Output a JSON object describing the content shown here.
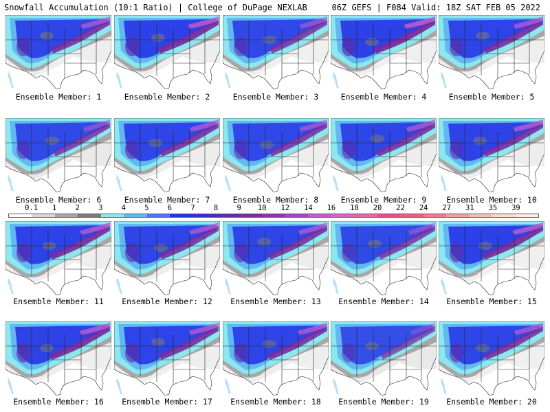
{
  "header": {
    "left": "Snowfall Accumulation (10:1 Ratio) | College of DuPage NEXLAB",
    "right": "06Z GEFS | F084 Valid: 18Z SAT FEB 05 2022"
  },
  "legend": {
    "labels": [
      "0.1",
      "1",
      "2",
      "3",
      "4",
      "5",
      "6",
      "7",
      "8",
      "9",
      "10",
      "12",
      "14",
      "16",
      "18",
      "20",
      "22",
      "24",
      "27",
      "31",
      "35",
      "39"
    ],
    "colors": [
      "#ffffff",
      "#d9d9d9",
      "#a6a6a6",
      "#7a7a7a",
      "#8ce8ee",
      "#63b8f2",
      "#4a78f0",
      "#2233e8",
      "#3a2fc6",
      "#5a2ea8",
      "#7a2b9e",
      "#8f34b0",
      "#a446c2",
      "#c05ccd",
      "#d566c8",
      "#dd6aa8",
      "#e04f8e",
      "#e2627c",
      "#e87f8a",
      "#ef9f9c",
      "#f3bfb3",
      "#f8dccb",
      "#fbeee0"
    ]
  },
  "members": [
    {
      "label": "Ensemble Member: 1",
      "spread": 0.92,
      "intensity": 0.72
    },
    {
      "label": "Ensemble Member: 2",
      "spread": 0.92,
      "intensity": 0.82
    },
    {
      "label": "Ensemble Member: 3",
      "spread": 0.95,
      "intensity": 0.6
    },
    {
      "label": "Ensemble Member: 4",
      "spread": 0.95,
      "intensity": 0.86
    },
    {
      "label": "Ensemble Member: 5",
      "spread": 0.9,
      "intensity": 0.74
    },
    {
      "label": "Ensemble Member: 6",
      "spread": 0.55,
      "intensity": 0.55
    },
    {
      "label": "Ensemble Member: 7",
      "spread": 0.85,
      "intensity": 0.7
    },
    {
      "label": "Ensemble Member: 8",
      "spread": 0.9,
      "intensity": 0.64
    },
    {
      "label": "Ensemble Member: 9",
      "spread": 0.82,
      "intensity": 0.7
    },
    {
      "label": "Ensemble Member: 10",
      "spread": 0.85,
      "intensity": 0.76
    },
    {
      "label": "Ensemble Member: 11",
      "spread": 0.88,
      "intensity": 0.78
    },
    {
      "label": "Ensemble Member: 12",
      "spread": 0.9,
      "intensity": 0.72
    },
    {
      "label": "Ensemble Member: 13",
      "spread": 0.85,
      "intensity": 0.7
    },
    {
      "label": "Ensemble Member: 14",
      "spread": 0.92,
      "intensity": 0.55
    },
    {
      "label": "Ensemble Member: 15",
      "spread": 0.95,
      "intensity": 0.82
    },
    {
      "label": "Ensemble Member: 16",
      "spread": 0.88,
      "intensity": 0.8
    },
    {
      "label": "Ensemble Member: 17",
      "spread": 0.88,
      "intensity": 0.75
    },
    {
      "label": "Ensemble Member: 18",
      "spread": 0.92,
      "intensity": 0.74
    },
    {
      "label": "Ensemble Member: 19",
      "spread": 0.55,
      "intensity": 0.4
    },
    {
      "label": "Ensemble Member: 20",
      "spread": 0.95,
      "intensity": 0.7
    }
  ]
}
